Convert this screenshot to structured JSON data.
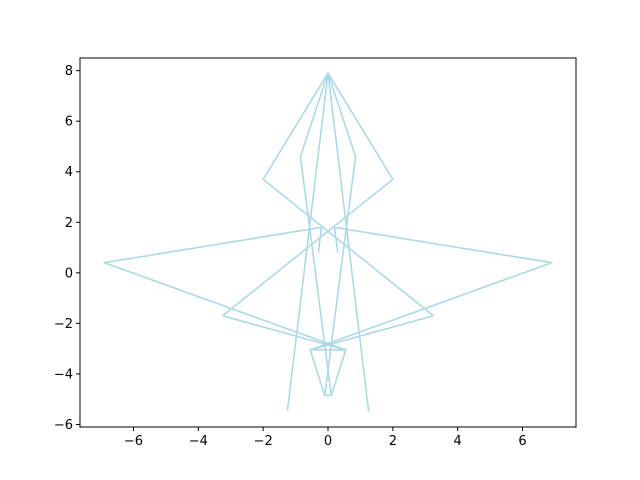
{
  "chart_data": {
    "type": "line",
    "title": "",
    "xlabel": "",
    "ylabel": "",
    "xlim": [
      -7.65,
      7.65
    ],
    "ylim": [
      -6.1,
      8.5
    ],
    "x_ticks": [
      -6,
      -4,
      -2,
      0,
      2,
      4,
      6
    ],
    "y_ticks": [
      -6,
      -4,
      -2,
      0,
      2,
      4,
      6,
      8
    ],
    "x_tick_labels": [
      "−6",
      "−4",
      "−2",
      "0",
      "2",
      "4",
      "6"
    ],
    "y_tick_labels": [
      "−6",
      "−4",
      "−2",
      "0",
      "2",
      "4",
      "6",
      "8"
    ],
    "grid": false,
    "line_color": "#add8e6",
    "series": [
      {
        "x": [
          -1.25,
          0.0,
          1.25,
          0.0,
          -1.25
        ],
        "y": [
          -5.45,
          7.9,
          -5.45,
          7.9,
          -5.45
        ]
      },
      {
        "x": [
          -2.0,
          0.0,
          2.0
        ],
        "y": [
          3.7,
          7.9,
          3.7
        ]
      },
      {
        "x": [
          -2.0,
          3.25
        ],
        "y": [
          3.7,
          -1.7
        ]
      },
      {
        "x": [
          2.0,
          -3.25
        ],
        "y": [
          3.7,
          -1.7
        ]
      },
      {
        "x": [
          -0.85,
          0.0,
          0.85
        ],
        "y": [
          4.6,
          7.9,
          4.6
        ]
      },
      {
        "x": [
          -0.85,
          0.1
        ],
        "y": [
          4.6,
          -4.85
        ]
      },
      {
        "x": [
          0.85,
          -0.1
        ],
        "y": [
          4.6,
          -4.85
        ]
      },
      {
        "x": [
          -3.25,
          0.55,
          -0.55,
          3.25
        ],
        "y": [
          -1.7,
          -3.05,
          -3.05,
          -1.7
        ]
      },
      {
        "x": [
          -0.55,
          -0.1,
          0.1,
          0.55
        ],
        "y": [
          -3.05,
          -4.85,
          -4.85,
          -3.05
        ]
      },
      {
        "x": [
          -0.3,
          -0.2,
          -6.9,
          0.55
        ],
        "y": [
          0.8,
          1.8,
          0.4,
          -3.05
        ]
      },
      {
        "x": [
          0.3,
          0.2,
          6.9,
          -0.55
        ],
        "y": [
          0.8,
          1.8,
          0.4,
          -3.05
        ]
      }
    ]
  }
}
